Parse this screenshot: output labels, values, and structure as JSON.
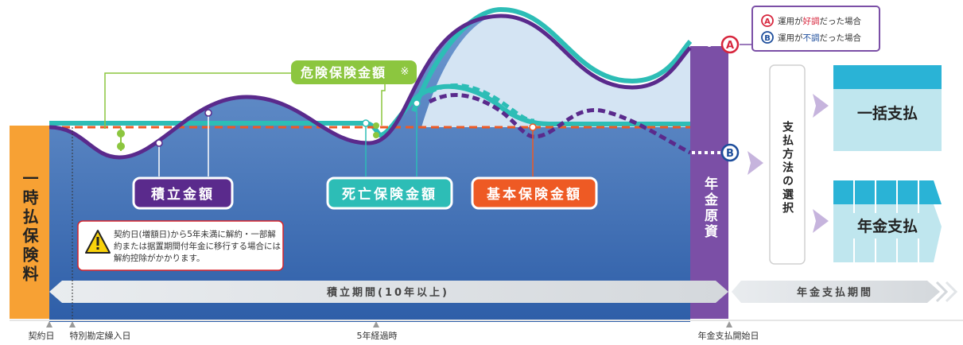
{
  "vertical_labels": {
    "premium": "一時払保険料",
    "annuity_fund": "年金原資",
    "payment_method_select": "支払方法の選択"
  },
  "legend": {
    "a_letter": "A",
    "a_pre": "運用が",
    "a_accent": "好調",
    "a_post": "だった場合",
    "b_letter": "B",
    "b_pre": "運用が",
    "b_accent": "不調",
    "b_post": "だった場合",
    "a_color": "#d7263d",
    "b_color": "#1e4e9c"
  },
  "labels": {
    "risk_amount": "危険保険金額",
    "risk_asterisk": "※",
    "accumulated": "積立金額",
    "death_benefit": "死亡保険金額",
    "basic_benefit": "基本保険金額",
    "lump_sum": "一括支払",
    "annuity_payment": "年金支払"
  },
  "warning": {
    "text": "契約日(増額日)から5年未満に解約・一部解約または据置期間付年金に移行する場合には解約控除がかかります。"
  },
  "periods": {
    "accumulation": "積立期間(10年以上)",
    "payment": "年金支払期間"
  },
  "axis": {
    "contract_date": "契約日",
    "special_transfer_date": "特別勘定繰入日",
    "five_years": "5年経過時",
    "annuity_start": "年金支払開始日"
  },
  "markers": {
    "a": "A",
    "b": "B"
  },
  "colors": {
    "premium_bar": "#f7a134",
    "account_blue": "#3f6fb8",
    "upside_light": "#d4e4f3",
    "fund_purple": "#7b4fa6",
    "accum_line": "#5a2a8c",
    "death_line": "#2dbdb6",
    "basic_line": "#ee5a24",
    "risk_green": "#8cc63f",
    "payment_block": "#bfe6ee",
    "payment_header": "#2ab3d6"
  }
}
